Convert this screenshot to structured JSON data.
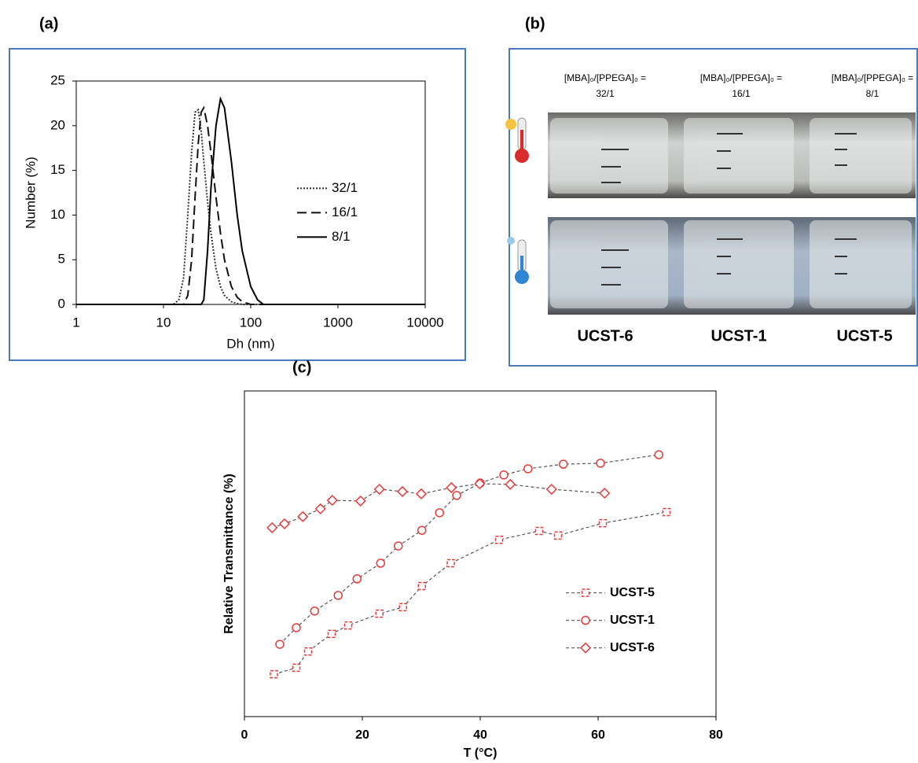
{
  "chart_data": [
    {
      "type": "line",
      "panel_label": "(a)",
      "xlabel": "Dh (nm)",
      "ylabel": "Number (%)",
      "xscale": "log",
      "x": [
        1,
        10,
        13,
        15,
        17,
        19,
        21,
        23,
        25,
        27,
        29,
        32,
        35,
        40,
        45,
        50,
        60,
        70,
        80,
        100,
        120,
        140,
        10000
      ],
      "series": [
        {
          "name": "32/1",
          "color": "#333333",
          "dash": "dotted",
          "values": [
            0,
            0,
            0,
            0.5,
            3,
            10,
            17,
            21.5,
            21.8,
            19.5,
            16,
            11.5,
            8,
            4,
            2,
            1,
            0.3,
            0.1,
            0,
            0,
            0,
            0,
            0
          ]
        },
        {
          "name": "16/1",
          "color": "#111111",
          "dash": "dashed",
          "values": [
            0,
            0,
            0,
            0,
            0,
            1,
            5,
            12,
            18,
            21.5,
            22,
            20,
            17,
            12,
            8,
            5,
            2,
            0.8,
            0.3,
            0,
            0,
            0,
            0
          ]
        },
        {
          "name": "8/1",
          "color": "#000000",
          "dash": "solid",
          "values": [
            0,
            0,
            0,
            0,
            0,
            0,
            0,
            0,
            0,
            0,
            0.5,
            6,
            13,
            20,
            23,
            22,
            16,
            10,
            6,
            2,
            0.5,
            0,
            0
          ]
        }
      ],
      "xlim": [
        1,
        10000
      ],
      "xticks": [
        1,
        10,
        100,
        1000,
        10000
      ],
      "ylim": [
        0,
        25
      ],
      "yticks": [
        0,
        5,
        10,
        15,
        20,
        25
      ],
      "grid": false,
      "legend": "center-right"
    },
    {
      "type": "line",
      "panel_label": "(c)",
      "xlabel": "T (°C)",
      "ylabel": "Relative Transmittance (%)",
      "line_color": "#555555",
      "series": [
        {
          "name": "UCST-5",
          "color": "#e8393a",
          "marker": "square",
          "x": [
            5,
            8.8,
            10.8,
            14.8,
            17.6,
            22.9,
            26.9,
            30.1,
            35,
            43.2,
            50,
            53.2,
            60.8,
            71.6
          ],
          "values": [
            13,
            15,
            20,
            25.4,
            28,
            31.6,
            33.6,
            40.1,
            47.1,
            54.3,
            57,
            55.6,
            59.4,
            62.8
          ]
        },
        {
          "name": "UCST-1",
          "color": "#e8393a",
          "marker": "circle",
          "x": [
            6,
            8.8,
            11.9,
            15.9,
            19.1,
            23.1,
            26.1,
            30.1,
            33.1,
            36,
            40,
            44,
            48.1,
            54.1,
            60.4,
            70.3
          ],
          "values": [
            22.2,
            27.3,
            32.4,
            37.2,
            42.3,
            47.1,
            52.4,
            57.2,
            62.6,
            67.9,
            71.7,
            74.2,
            76.1,
            77.5,
            77.8,
            80.4
          ]
        },
        {
          "name": "UCST-6",
          "color": "#e8393a",
          "marker": "diamond",
          "x": [
            4.7,
            6.8,
            9.9,
            12.9,
            14.9,
            19.7,
            22.9,
            26.8,
            30,
            35.1,
            39.9,
            45.1,
            52.1,
            61.1
          ],
          "values": [
            58,
            59.2,
            61.4,
            63.8,
            66.4,
            66.2,
            69.8,
            69.1,
            68.4,
            70.3,
            71.5,
            71.3,
            69.8,
            68.6
          ]
        }
      ],
      "xlim": [
        0,
        80
      ],
      "xticks": [
        0,
        20,
        40,
        60,
        80
      ],
      "ylim": [
        0,
        100
      ],
      "grid": false,
      "legend": "lower-right"
    }
  ],
  "photo_panel": {
    "panel_label": "(b)",
    "captions": [
      {
        "text": "[MBA]₀/[PPEGA]₀ =",
        "ratio": "32/1"
      },
      {
        "text": "[MBA]₀/[PPEGA]₀ =",
        "ratio": "16/1"
      },
      {
        "text": "[MBA]₀/[PPEGA]₀ =",
        "ratio": "8/1"
      }
    ],
    "samples": [
      "UCST-6",
      "UCST-1",
      "UCST-5"
    ]
  }
}
